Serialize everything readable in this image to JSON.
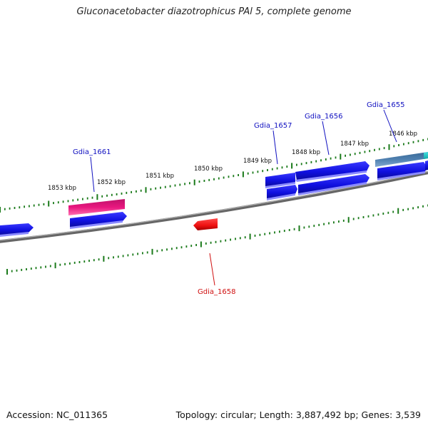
{
  "title": "Gluconacetobacter diazotrophicus PAl 5, complete genome",
  "footer": {
    "accession": "Accession: NC_011365",
    "summary": "Topology: circular; Length: 3,887,492 bp; Genes: 3,539"
  },
  "colors": {
    "forward_strand": "#1010e0",
    "reverse_strand": "#ee1010",
    "highlight_pink": "#e8177f",
    "steel_gene": "#4f80b0",
    "cyan_gene": "#22c4c4",
    "backbone": "#808080",
    "tick": "#1a7a1a"
  },
  "scale_labels": [
    "1846 kbp",
    "1847 kbp",
    "1848 kbp",
    "1849 kbp",
    "1850 kbp",
    "1851 kbp",
    "1852 kbp",
    "1853 kbp"
  ],
  "gene_labels": [
    {
      "name": "Gdia_1655",
      "color": "#1010c0"
    },
    {
      "name": "Gdia_1656",
      "color": "#1010c0"
    },
    {
      "name": "Gdia_1657",
      "color": "#1010c0"
    },
    {
      "name": "Gdia_1661",
      "color": "#1010c0"
    },
    {
      "name": "Gdia_1658",
      "color": "#d01010"
    }
  ]
}
